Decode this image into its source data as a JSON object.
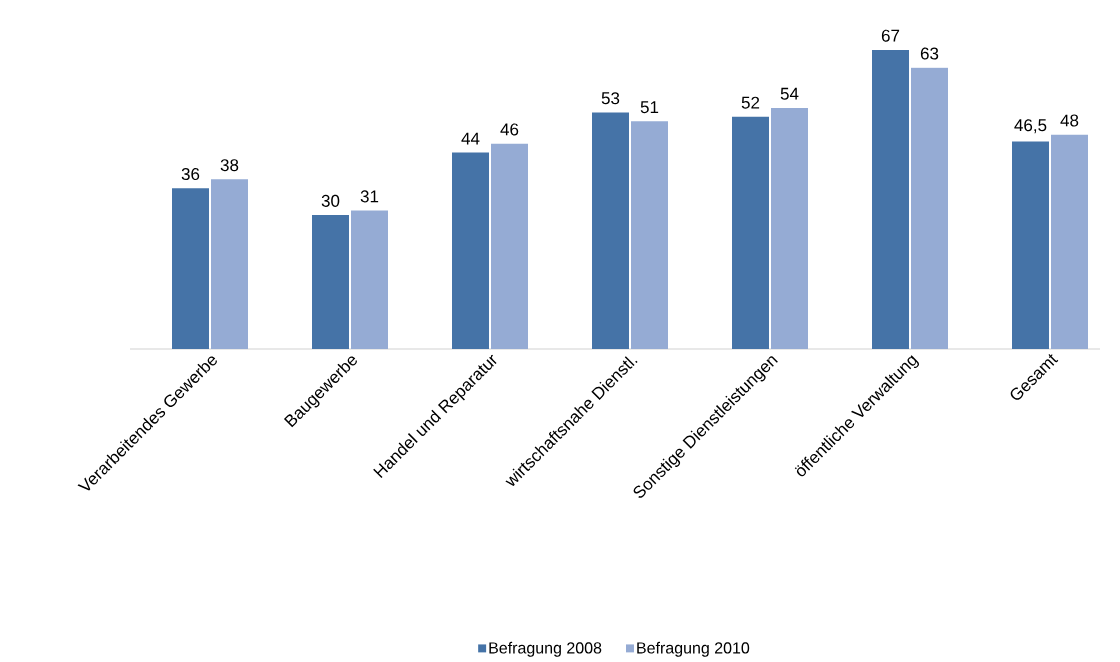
{
  "chart_data": {
    "type": "bar",
    "categories": [
      "Verarbeitendes Gewerbe",
      "Baugewerbe",
      "Handel und Reparatur",
      "wirtschaftsnahe Dienstl.",
      "Sonstige Dienstleistungen",
      "öffentliche Verwaltung",
      "Gesamt"
    ],
    "series": [
      {
        "name": "Befragung 2008",
        "color": "#4573a7",
        "values": [
          36,
          30,
          44,
          53,
          52,
          67,
          46.5
        ],
        "value_labels": [
          "36",
          "30",
          "44",
          "53",
          "52",
          "67",
          "46,5"
        ]
      },
      {
        "name": "Befragung 2010",
        "color": "#95abd4",
        "values": [
          38,
          31,
          46,
          51,
          54,
          63,
          48
        ],
        "value_labels": [
          "38",
          "31",
          "46",
          "51",
          "54",
          "63",
          "48"
        ]
      }
    ],
    "legend": "bottom"
  }
}
